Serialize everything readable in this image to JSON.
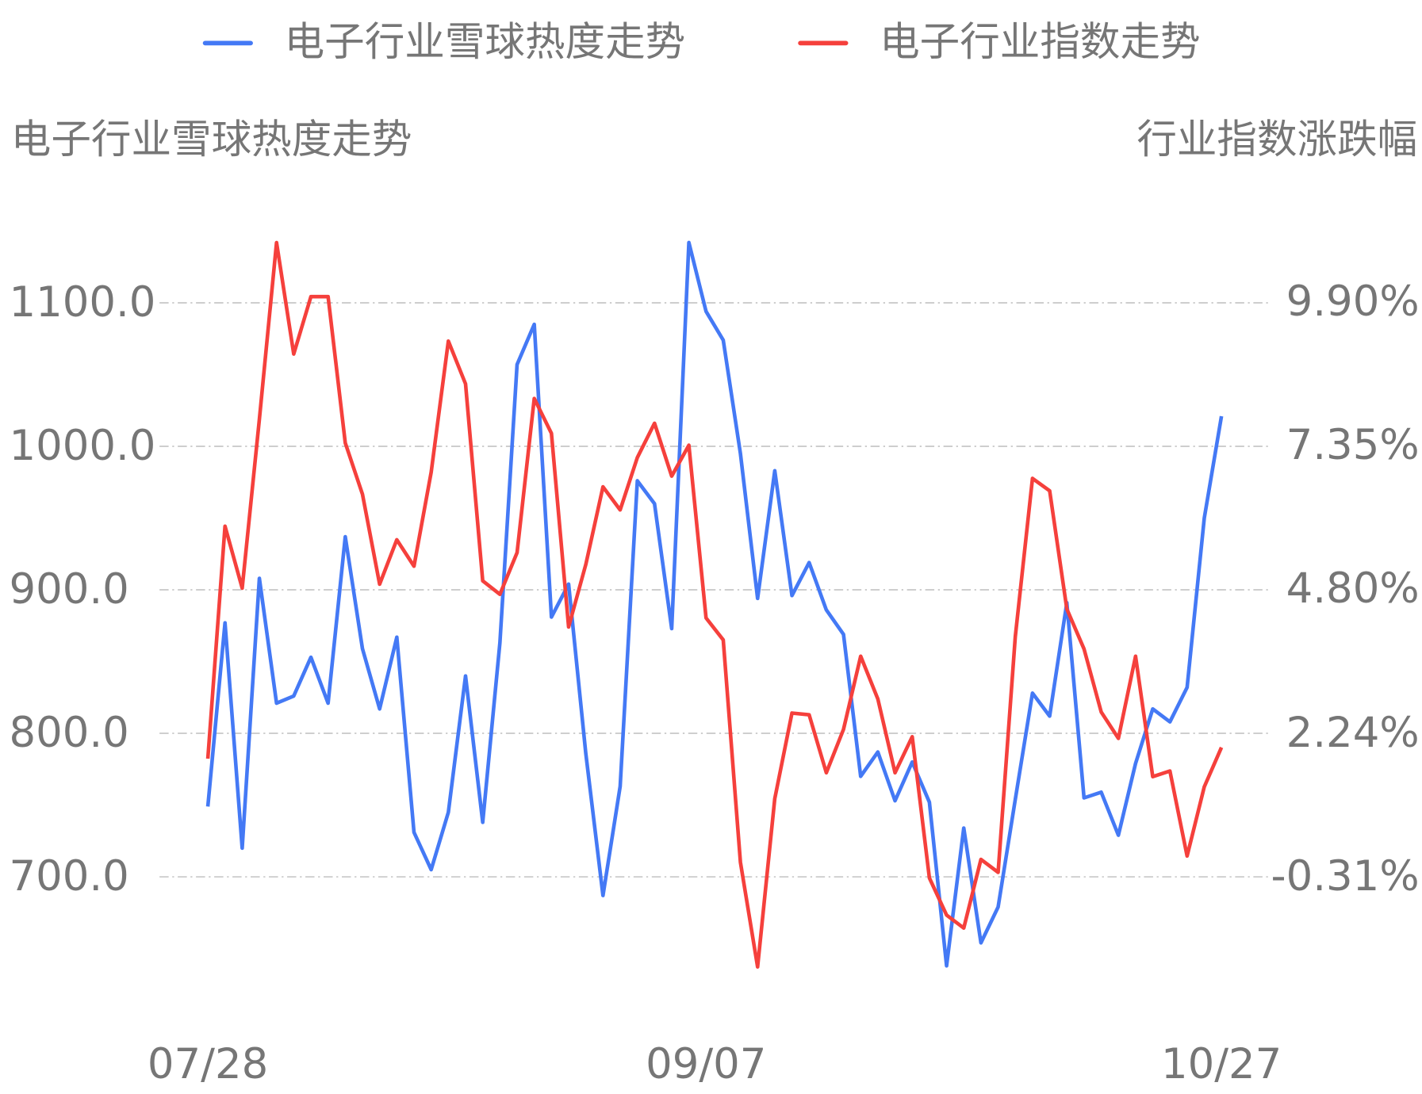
{
  "chart_data": {
    "type": "line",
    "y_title": "电子行业雪球热度走势",
    "y2_title": "行业指数涨跌幅",
    "categories": [
      "07/28",
      null,
      null,
      null,
      null,
      null,
      null,
      null,
      null,
      null,
      null,
      null,
      null,
      null,
      null,
      null,
      null,
      null,
      null,
      null,
      null,
      null,
      null,
      null,
      null,
      null,
      null,
      null,
      null,
      "09/07",
      null,
      null,
      null,
      null,
      null,
      null,
      null,
      null,
      null,
      null,
      null,
      null,
      null,
      null,
      null,
      null,
      null,
      null,
      null,
      null,
      null,
      null,
      null,
      null,
      null,
      null,
      null,
      null,
      null,
      "10/27"
    ],
    "series": [
      {
        "name": "电子行业雪球热度走势",
        "color": "#4479f5",
        "axis": "y",
        "values": [
          749,
          877,
          720,
          908,
          821,
          826,
          853,
          821,
          937,
          859,
          817,
          867,
          731,
          705,
          745,
          840,
          738,
          863,
          1057,
          1085,
          881,
          904,
          786,
          687,
          763,
          976,
          960,
          873,
          1142,
          1094,
          1074,
          995,
          894,
          983,
          896,
          919,
          886,
          869,
          770,
          787,
          753,
          780,
          752,
          638,
          734,
          654,
          679,
          754,
          828,
          812,
          891,
          755,
          759,
          729,
          779,
          817,
          808,
          832,
          950,
          1021
        ]
      },
      {
        "name": "电子行业指数走势",
        "color": "#f5403c",
        "axis": "y2",
        "values": [
          1.79,
          5.92,
          4.82,
          7.82,
          10.96,
          8.98,
          10.0,
          10.0,
          7.4,
          6.49,
          4.89,
          5.68,
          5.21,
          6.88,
          9.21,
          8.45,
          4.95,
          4.71,
          5.45,
          8.19,
          7.57,
          4.13,
          5.24,
          6.62,
          6.21,
          7.14,
          7.75,
          6.81,
          7.36,
          4.29,
          3.9,
          -0.05,
          -1.91,
          1.08,
          2.6,
          2.57,
          1.54,
          2.31,
          3.61,
          2.85,
          1.54,
          2.18,
          -0.33,
          -0.99,
          -1.22,
          0.0,
          -0.23,
          3.96,
          6.77,
          6.55,
          4.45,
          3.74,
          2.62,
          2.15,
          3.61,
          1.47,
          1.57,
          0.06,
          1.29,
          1.99
        ]
      }
    ],
    "ylim": [
      600,
      1160
    ],
    "yticks": [
      {
        "value": 700,
        "label": "700.0"
      },
      {
        "value": 800,
        "label": "800.0"
      },
      {
        "value": 900,
        "label": "900.0"
      },
      {
        "value": 1000,
        "label": "1000.0"
      },
      {
        "value": 1100,
        "label": "1100.0"
      }
    ],
    "y2lim": [
      -2.86,
      11.42
    ],
    "y2ticks": [
      {
        "value": -0.31,
        "label": "-0.31%"
      },
      {
        "value": 2.24,
        "label": "2.24%"
      },
      {
        "value": 4.8,
        "label": "4.80%"
      },
      {
        "value": 7.35,
        "label": "7.35%"
      },
      {
        "value": 9.9,
        "label": "9.90%"
      }
    ],
    "grid": true,
    "legend": "top"
  }
}
